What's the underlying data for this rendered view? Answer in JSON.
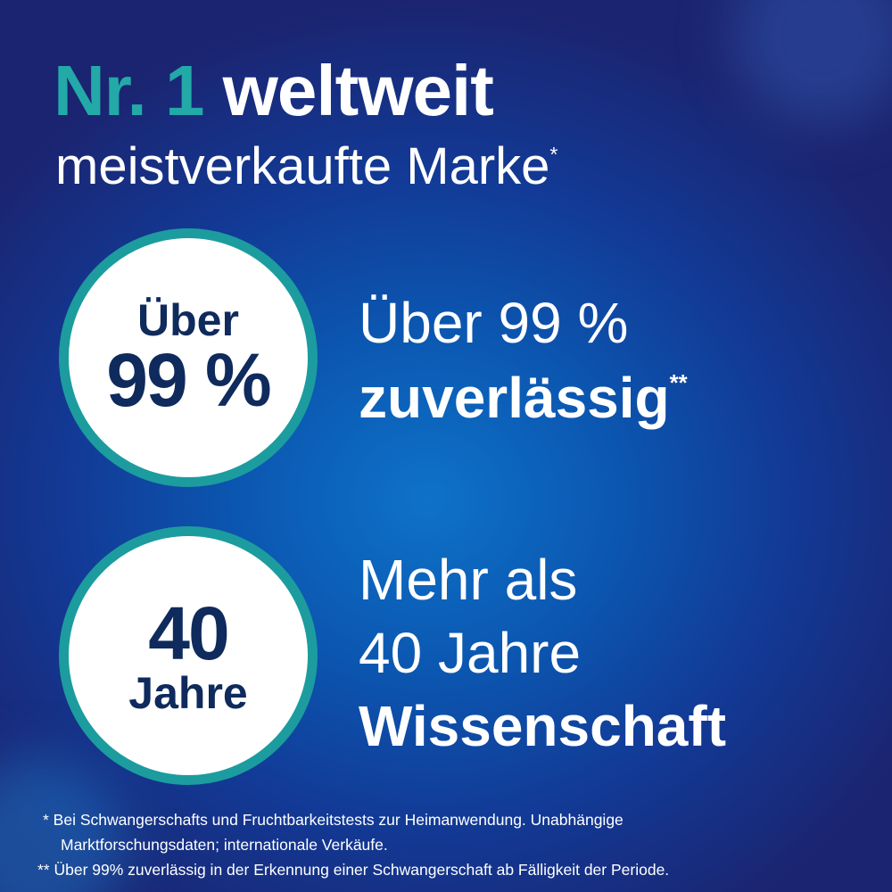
{
  "headline": {
    "highlight": "Nr. 1",
    "rest": "weltweit",
    "subline": "meistverkaufte Marke",
    "subline_mark": "*"
  },
  "badges": [
    {
      "line1": "Über",
      "line2": "99 %"
    },
    {
      "line1": "40",
      "line2": "Jahre"
    }
  ],
  "claims": [
    {
      "line1": "Über 99 %",
      "line2": "zuverlässig",
      "mark": "**"
    },
    {
      "line1": "Mehr als",
      "line2": "40 Jahre",
      "line3": "Wissenschaft"
    }
  ],
  "footnotes": [
    {
      "line1": "* Bei Schwangerschafts und Fruchtbarkeitstests zur Heimanwendung. Unabhängige",
      "line2": "Marktforschungsdaten; internationale Verkäufe."
    },
    {
      "line1": "** Über 99% zuverlässig in der Erkennung einer Schwangerschaft ab Fälligkeit der Periode."
    }
  ],
  "colors": {
    "accent": "#23a9a8",
    "navy": "#0f2a5c",
    "background": "#0b56b0"
  }
}
